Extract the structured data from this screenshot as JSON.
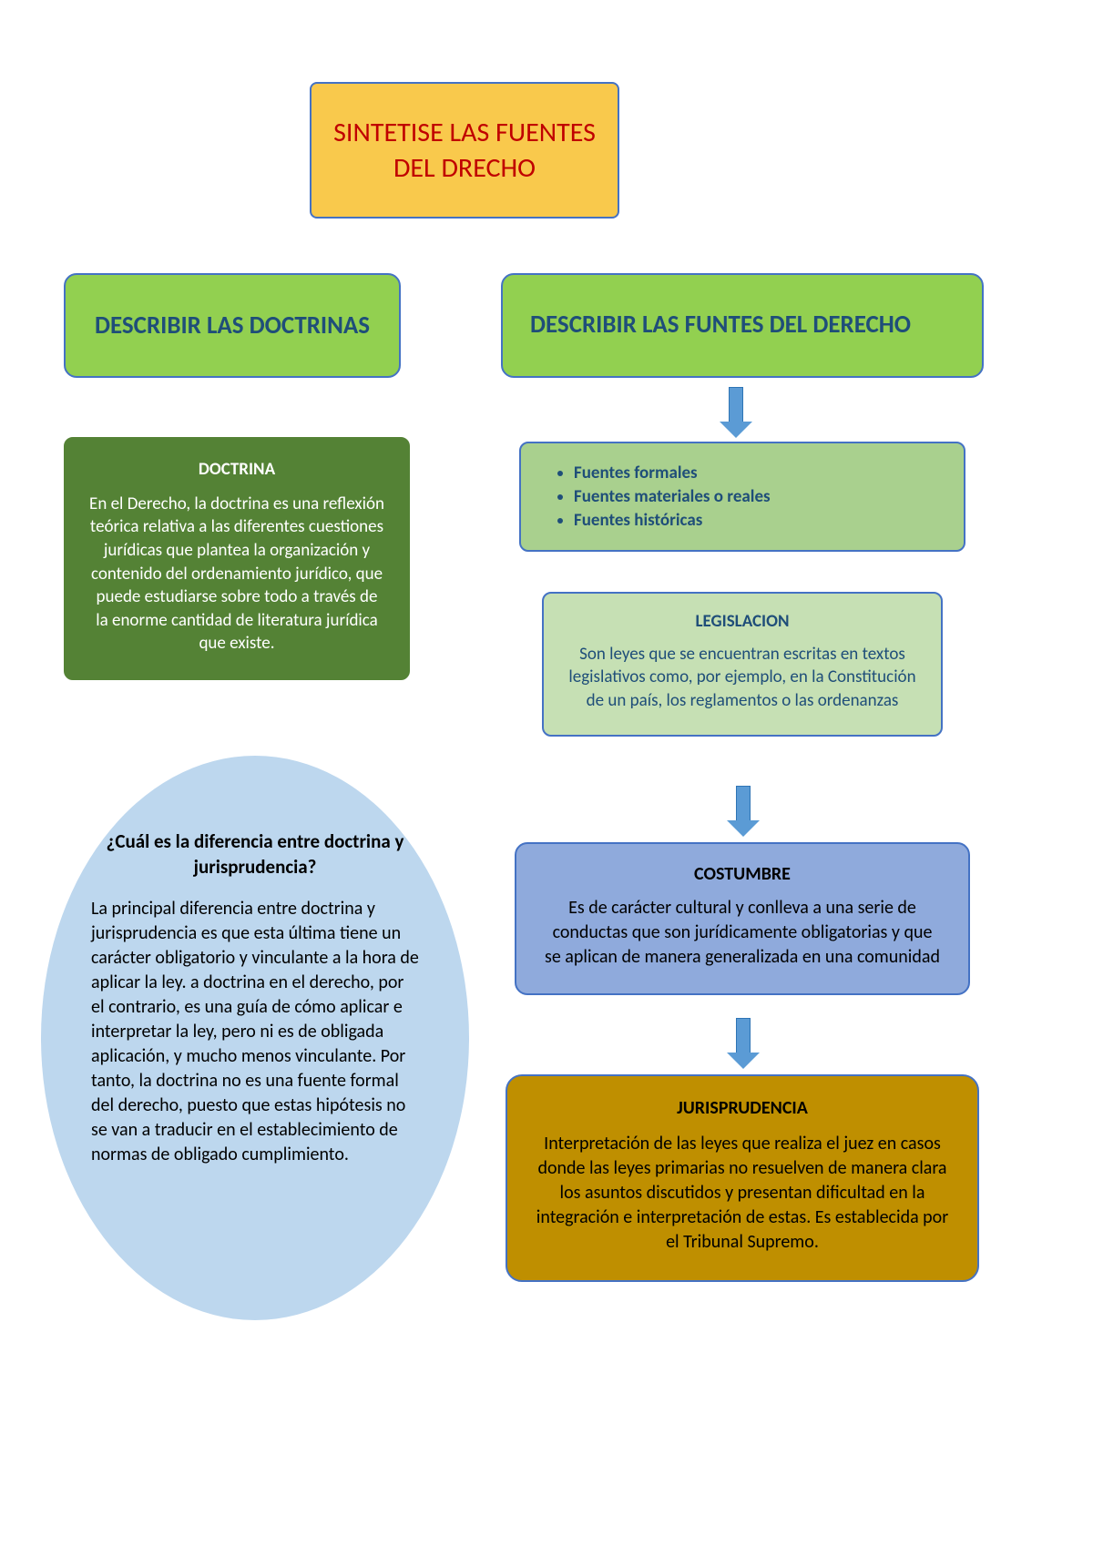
{
  "colors": {
    "page_bg": "#ffffff",
    "title_bg": "#f9c94c",
    "title_text": "#c00000",
    "blue_border": "#4472c4",
    "green_header_bg": "#92d050",
    "green_header_text": "#1f4e79",
    "dark_green_bg": "#548235",
    "light_list_bg": "#a9d08e",
    "legislacion_bg": "#c6e0b4",
    "costumbre_bg": "#8faadc",
    "jurisprudencia_bg": "#bf8f00",
    "ellipse_bg": "#bdd7ee",
    "arrow_fill": "#5b9bd5",
    "arrow_border": "#2e74b5"
  },
  "fonts": {
    "family": "Calibri, Arial, sans-serif",
    "title_size_pt": 22,
    "header_size_pt": 20,
    "body_size_pt": 14
  },
  "title": "SINTETISE LAS FUENTES DEL DRECHO",
  "left": {
    "header": "DESCRIBIR LAS DOCTRINAS",
    "doctrina": {
      "heading": "DOCTRINA",
      "body": "En el Derecho, la doctrina es una reflexión teórica relativa a las diferentes cuestiones jurídicas que plantea la organización y contenido del ordenamiento jurídico, que puede estudiarse sobre todo a través de la enorme cantidad de literatura jurídica que existe."
    },
    "ellipse": {
      "heading": "¿Cuál es la diferencia entre doctrina y jurisprudencia?",
      "body": "La principal diferencia entre doctrina y jurisprudencia es que esta última tiene un carácter obligatorio y vinculante a la hora de aplicar la ley. a doctrina en el derecho, por el contrario, es una guía de cómo aplicar e interpretar la ley, pero ni es de obligada aplicación, y mucho menos vinculante. Por tanto, la doctrina no es una fuente formal del derecho, puesto que estas hipótesis no se van a traducir en el establecimiento de normas de obligado cumplimiento."
    }
  },
  "right": {
    "header": "DESCRIBIR LAS FUNTES DEL DERECHO",
    "list": {
      "item1": "Fuentes formales",
      "item2": "Fuentes materiales o reales",
      "item3": "Fuentes históricas"
    },
    "legislacion": {
      "heading": "LEGISLACION",
      "body": "Son leyes que se encuentran escritas en textos legislativos como, por ejemplo, en la Constitución de un país, los reglamentos o las ordenanzas"
    },
    "costumbre": {
      "heading": "COSTUMBRE",
      "body": "Es de carácter cultural y conlleva a una serie de conductas que son jurídicamente obligatorias y que se aplican de manera generalizada en una comunidad"
    },
    "jurisprudencia": {
      "heading": "JURISPRUDENCIA",
      "body": "Interpretación de las leyes que realiza el juez en casos donde las leyes primarias no resuelven de manera clara los asuntos discutidos y presentan dificultad en la integración e interpretación de estas. Es establecida por el Tribunal Supremo."
    }
  }
}
